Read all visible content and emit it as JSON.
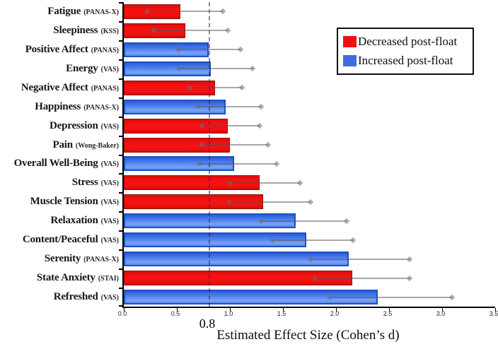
{
  "chart_data": {
    "type": "bar",
    "orientation": "horizontal",
    "xlabel": "Estimated Effect Size (Cohen’s d)",
    "xlim": [
      0.0,
      3.5
    ],
    "x_ticks": [
      "0.0",
      "0.5",
      "1.0",
      "1.5",
      "2.0",
      "2.5",
      "3.0",
      "3.5"
    ],
    "grid": "off",
    "reference_line": {
      "value": 0.8,
      "label": "0.8"
    },
    "legend_position": "top-right",
    "legend": [
      {
        "label": "Decreased post-float",
        "color": "#ee1111",
        "group": "decreased"
      },
      {
        "label": "Increased post-float",
        "color": "#3d6ce3",
        "group": "increased"
      }
    ],
    "categories": [
      {
        "label": "Fatigue",
        "scale": "(PANAS-X)",
        "group": "decreased",
        "value": 0.53,
        "ci_low": 0.22,
        "ci_high": 0.93
      },
      {
        "label": "Sleepiness",
        "scale": "(KSS)",
        "group": "decreased",
        "value": 0.58,
        "ci_low": 0.28,
        "ci_high": 0.98
      },
      {
        "label": "Positive Affect",
        "scale": "(PANAS)",
        "group": "increased",
        "value": 0.8,
        "ci_low": 0.51,
        "ci_high": 1.1
      },
      {
        "label": "Energy",
        "scale": "(VAS)",
        "group": "increased",
        "value": 0.82,
        "ci_low": 0.52,
        "ci_high": 1.21
      },
      {
        "label": "Negative Affect",
        "scale": "(PANAS)",
        "group": "decreased",
        "value": 0.86,
        "ci_low": 0.62,
        "ci_high": 1.11
      },
      {
        "label": "Happiness",
        "scale": "(PANAS-X)",
        "group": "increased",
        "value": 0.96,
        "ci_low": 0.7,
        "ci_high": 1.29
      },
      {
        "label": "Depression",
        "scale": "(VAS)",
        "group": "decreased",
        "value": 0.98,
        "ci_low": 0.73,
        "ci_high": 1.28
      },
      {
        "label": "Pain",
        "scale": "(Wong-Baker)",
        "group": "decreased",
        "value": 1.0,
        "ci_low": 0.73,
        "ci_high": 1.36
      },
      {
        "label": "Overall Well-Being",
        "scale": "(VAS)",
        "group": "increased",
        "value": 1.04,
        "ci_low": 0.71,
        "ci_high": 1.44
      },
      {
        "label": "Stress",
        "scale": "(VAS)",
        "group": "decreased",
        "value": 1.28,
        "ci_low": 1.0,
        "ci_high": 1.66
      },
      {
        "label": "Muscle Tension",
        "scale": "(VAS)",
        "group": "decreased",
        "value": 1.31,
        "ci_low": 0.99,
        "ci_high": 1.76
      },
      {
        "label": "Relaxation",
        "scale": "(VAS)",
        "group": "increased",
        "value": 1.62,
        "ci_low": 1.29,
        "ci_high": 2.1
      },
      {
        "label": "Content/Peaceful",
        "scale": "(VAS)",
        "group": "increased",
        "value": 1.72,
        "ci_low": 1.4,
        "ci_high": 2.16
      },
      {
        "label": "Serenity",
        "scale": "(PANAS-X)",
        "group": "increased",
        "value": 2.12,
        "ci_low": 1.76,
        "ci_high": 2.69
      },
      {
        "label": "State Anxiety",
        "scale": "(STAI)",
        "group": "decreased",
        "value": 2.15,
        "ci_low": 1.8,
        "ci_high": 2.69
      },
      {
        "label": "Refreshed",
        "scale": "(VAS)",
        "group": "increased",
        "value": 2.39,
        "ci_low": 1.94,
        "ci_high": 3.09
      }
    ]
  },
  "colors": {
    "bar_red_fill": "#f31111",
    "bar_red_border": "#8f1408",
    "bar_blue_fill": "#4a7cec",
    "bar_blue_border": "#1d50c6",
    "error_bar": "#a0a0a0",
    "reference_dash": "#7a7a7a",
    "axis": "#000000",
    "background": "#ffffff"
  }
}
